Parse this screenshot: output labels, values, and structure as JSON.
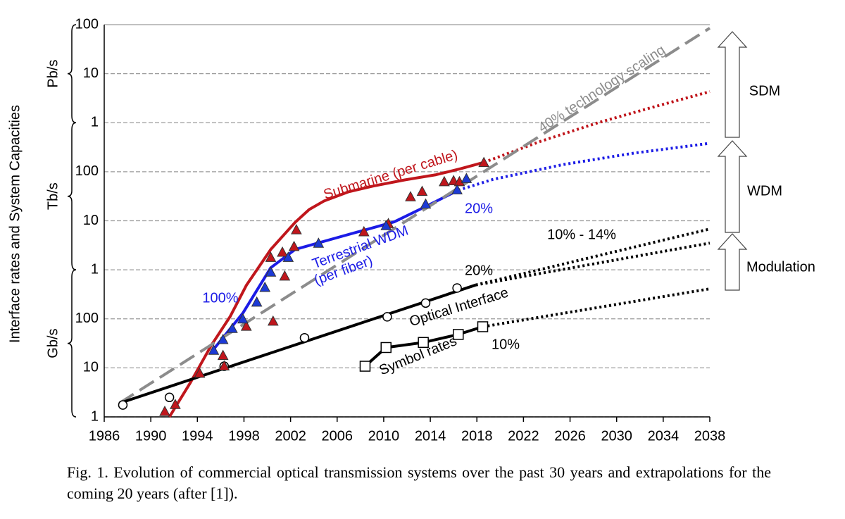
{
  "chart_data": {
    "type": "line",
    "y_label": "Interface rates and System Capacities",
    "y_unit_labels": [
      "Gb/s",
      "Tb/s",
      "Pb/s"
    ],
    "log_y": true,
    "grid": true,
    "xlim": [
      1986,
      2038
    ],
    "xticks": [
      1986,
      1990,
      1994,
      1998,
      2002,
      2006,
      2010,
      2014,
      2018,
      2022,
      2026,
      2030,
      2034,
      2038
    ],
    "ylim": [
      1,
      100000000
    ],
    "yticks": [
      1,
      10,
      100,
      {
        "value": 1000,
        "label": "1"
      },
      {
        "value": 10000,
        "label": "10"
      },
      {
        "value": 100000,
        "label": "100"
      },
      {
        "value": 1000000,
        "label": "1"
      },
      {
        "value": 10000000,
        "label": "10"
      },
      {
        "value": 100000000,
        "label": "100"
      }
    ],
    "series": [
      {
        "color": "#c0161c",
        "style": "solid",
        "marker": null,
        "x": [
          1991.6,
          1993.4,
          1995.2,
          1996.8,
          1998.2,
          2000.3,
          2002.4,
          2003.6,
          2004.9,
          2007,
          2009.1,
          2011.8,
          2014.5,
          2016.6,
          2018.6
        ],
        "values": [
          1,
          5,
          29,
          110,
          480,
          2600,
          9300,
          17000,
          25500,
          39000,
          51000,
          68000,
          87000,
          115000,
          155000
        ]
      },
      {
        "color": "#c0161c",
        "style": "dotted",
        "marker": null,
        "x": [
          2018.6,
          2023.5,
          2028.4,
          2033.2,
          2038
        ],
        "values": [
          155000,
          420000,
          1000000,
          2100000,
          4300000
        ]
      },
      {
        "color": "#1c1ce6",
        "style": "solid",
        "marker": null,
        "x": [
          1995.2,
          1997.9,
          2000.3,
          2002.4,
          2006.1,
          2010.9,
          2013.7,
          2016.4
        ],
        "values": [
          21,
          130,
          1100,
          2600,
          4600,
          9500,
          20000,
          42000
        ]
      },
      {
        "color": "#1c1ce6",
        "style": "dotted",
        "marker": null,
        "x": [
          2016.4,
          2019.4,
          2025.4,
          2031.5,
          2038
        ],
        "values": [
          42000,
          70000,
          140000,
          240000,
          380000
        ]
      },
      {
        "color": "#8c8c8c",
        "style": "dashed",
        "marker": null,
        "x": [
          1987.3,
          2038
        ],
        "values": [
          1.9,
          85000000
        ]
      },
      {
        "color": "#000000",
        "style": "solid",
        "marker": null,
        "x": [
          1987.3,
          2017.9
        ],
        "values": [
          1.9,
          490
        ]
      },
      {
        "color": "#000000",
        "style": "dotted",
        "marker": null,
        "x": [
          2017.9,
          2038
        ],
        "values": [
          490,
          6800
        ]
      },
      {
        "color": "#000000",
        "style": "dotted",
        "marker": null,
        "x": [
          2017.9,
          2038
        ],
        "values": [
          490,
          3500
        ]
      },
      {
        "color": "#000000",
        "style": "dotted",
        "marker": null,
        "x": [
          2018.5,
          2038
        ],
        "values": [
          69,
          410
        ]
      },
      {
        "color": "#000000",
        "style": "solid",
        "marker": "square",
        "x": [
          2008.4,
          2010.2,
          2013.4,
          2016.4,
          2018.5
        ],
        "values": [
          10.8,
          26,
          33,
          48,
          69
        ]
      },
      {
        "color": "#000000",
        "style": "none",
        "marker": "circle",
        "x": [
          1987.6,
          1991.6,
          1996.3,
          2003.2,
          2010.3,
          2013.6,
          2016.3
        ],
        "values": [
          1.75,
          2.5,
          10.8,
          41,
          110,
          210,
          425
        ]
      },
      {
        "color": "#c0161c",
        "style": "none",
        "marker": "triangle",
        "x": [
          1991.2,
          1992.1,
          1994.2,
          1996.2,
          1996.3,
          1998.2,
          2000.5,
          2000.3,
          2001.3,
          2001.5,
          2002.3,
          2002.5,
          2008.3,
          2010.4,
          2012.3,
          2013.3,
          2015.2,
          2016.0,
          2016.5,
          2018.6
        ],
        "values": [
          1.3,
          1.8,
          7.8,
          18,
          11,
          71,
          90,
          1800,
          2300,
          750,
          3000,
          6600,
          6000,
          8800,
          31000,
          40000,
          63000,
          66000,
          63000,
          155000
        ]
      },
      {
        "color": "#1c3ad6",
        "style": "none",
        "marker": "triangle",
        "x": [
          1995.4,
          1996.2,
          1997.0,
          1997.9,
          1999.1,
          1999.8,
          2000.3,
          2001.8,
          2004.4,
          2010.2,
          2013.6,
          2016.3,
          2017.1
        ],
        "values": [
          23,
          38,
          64,
          100,
          220,
          440,
          900,
          1800,
          3500,
          8000,
          22000,
          43000,
          73000
        ]
      }
    ],
    "annotations": [
      {
        "text": "Submarine (per cable)",
        "color": "#c0161c"
      },
      {
        "text": "Terrestrial WDM",
        "color": "#1c1ce6"
      },
      {
        "text": "(per fiber)",
        "color": "#1c1ce6"
      },
      {
        "text": "100%",
        "color": "#1c1ce6"
      },
      {
        "text": "20%",
        "color": "#1c1ce6"
      },
      {
        "text": "40% technology scaling",
        "color": "#8c8c8c"
      },
      {
        "text": "10% - 14%",
        "color": "#000000"
      },
      {
        "text": "20%",
        "color": "#000000"
      },
      {
        "text": "Optical Interface",
        "color": "#000000"
      },
      {
        "text": "Symbol rates",
        "color": "#000000"
      },
      {
        "text": "10%",
        "color": "#000000"
      }
    ],
    "arrows": [
      "SDM",
      "WDM",
      "Modulation"
    ],
    "caption": "Fig. 1. Evolution of commercial optical transmission systems over the past 30 years and extrapolations for the coming 20 years (after [1])."
  }
}
